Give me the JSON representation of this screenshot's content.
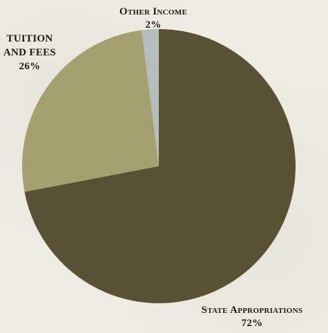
{
  "chart_data": {
    "type": "pie",
    "slices": [
      {
        "label": "State Appropriations",
        "value": 72,
        "display": "72%",
        "color": "#5a5036"
      },
      {
        "label": "Tuition and fees",
        "value": 26,
        "display": "26%",
        "color": "#a69f70"
      },
      {
        "label": "Other Income",
        "value": 2,
        "display": "2%",
        "color": "#b7bcbe"
      }
    ],
    "start": "12 o'clock",
    "direction": "clockwise"
  },
  "labels": {
    "state": {
      "line1": "State Appropriations",
      "line2": "72%"
    },
    "tuition": {
      "line1": "Tuition",
      "line2": "and fees",
      "line3": "26%"
    },
    "other": {
      "line1": "Other Income",
      "line2": "2%"
    }
  }
}
